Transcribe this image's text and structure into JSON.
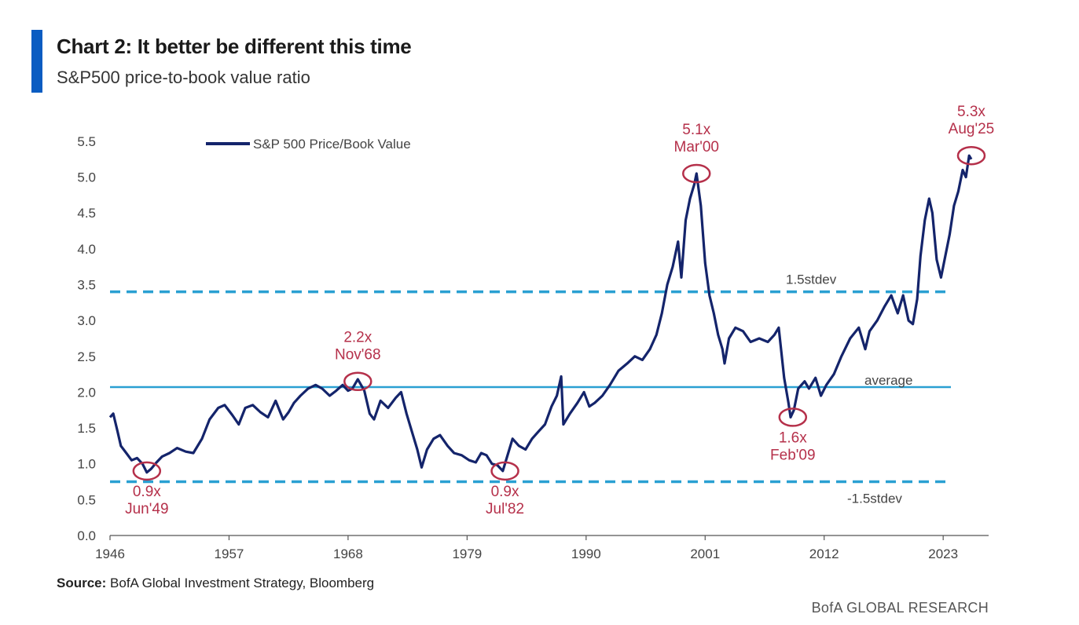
{
  "title": "Chart 2: It better be different this time",
  "subtitle": "S&P500 price-to-book value ratio",
  "source_label": "Source:",
  "source_text": "BofA Global Investment Strategy, Bloomberg",
  "footer": "BofA GLOBAL RESEARCH",
  "colors": {
    "accent": "#0a5cc2",
    "series": "#14246b",
    "bands": "#2aa0d2",
    "annotation": "#b5304a",
    "text": "#444444"
  },
  "chart_data": {
    "type": "line",
    "xlim": [
      1946,
      2027
    ],
    "ylim": [
      0,
      5.5
    ],
    "xticks": [
      "1946",
      "1957",
      "1968",
      "1979",
      "1990",
      "2001",
      "2012",
      "2023"
    ],
    "yticks": [
      "0.0",
      "0.5",
      "1.0",
      "1.5",
      "2.0",
      "2.5",
      "3.0",
      "3.5",
      "4.0",
      "4.5",
      "5.0",
      "5.5"
    ],
    "grid": false,
    "legend_position": "top-left",
    "series": [
      {
        "name": "S&P 500 Price/Book Value",
        "x": [
          1946.0,
          1946.3,
          1946.7,
          1947.0,
          1947.5,
          1948.0,
          1948.5,
          1949.0,
          1949.4,
          1949.8,
          1950.3,
          1950.8,
          1951.5,
          1952.2,
          1953.0,
          1953.7,
          1954.5,
          1955.2,
          1956.0,
          1956.6,
          1957.3,
          1957.9,
          1958.5,
          1959.2,
          1959.9,
          1960.6,
          1961.3,
          1962.0,
          1962.5,
          1963.0,
          1963.6,
          1964.3,
          1965.0,
          1965.6,
          1966.3,
          1966.9,
          1967.5,
          1968.0,
          1968.4,
          1968.9,
          1969.5,
          1970.0,
          1970.4,
          1971.0,
          1971.7,
          1972.4,
          1972.9,
          1973.4,
          1973.9,
          1974.4,
          1974.8,
          1975.3,
          1975.9,
          1976.5,
          1977.2,
          1977.8,
          1978.5,
          1979.2,
          1979.8,
          1980.3,
          1980.8,
          1981.3,
          1981.8,
          1982.3,
          1982.7,
          1983.2,
          1983.8,
          1984.4,
          1985.0,
          1985.6,
          1986.2,
          1986.8,
          1987.3,
          1987.7,
          1987.9,
          1988.5,
          1989.2,
          1989.8,
          1990.3,
          1990.8,
          1991.5,
          1992.2,
          1993.0,
          1993.8,
          1994.5,
          1995.2,
          1995.9,
          1996.5,
          1997.0,
          1997.5,
          1998.0,
          1998.5,
          1998.8,
          1999.2,
          1999.6,
          2000.0,
          2000.2,
          2000.6,
          2001.0,
          2001.4,
          2001.8,
          2002.2,
          2002.6,
          2002.8,
          2003.2,
          2003.8,
          2004.5,
          2005.2,
          2006.0,
          2006.8,
          2007.4,
          2007.8,
          2008.3,
          2008.7,
          2008.9,
          2009.2,
          2009.6,
          2010.2,
          2010.6,
          2011.2,
          2011.7,
          2012.2,
          2012.9,
          2013.6,
          2014.4,
          2015.2,
          2015.8,
          2016.2,
          2016.9,
          2017.6,
          2018.2,
          2018.8,
          2019.3,
          2019.8,
          2020.2,
          2020.6,
          2020.9,
          2021.3,
          2021.7,
          2022.0,
          2022.4,
          2022.8,
          2023.2,
          2023.6,
          2024.0,
          2024.4,
          2024.8,
          2025.1,
          2025.4,
          2025.6
        ],
        "values": [
          1.65,
          1.7,
          1.45,
          1.25,
          1.15,
          1.05,
          1.08,
          1.0,
          0.88,
          0.93,
          1.02,
          1.1,
          1.15,
          1.22,
          1.17,
          1.15,
          1.35,
          1.62,
          1.78,
          1.82,
          1.68,
          1.55,
          1.78,
          1.82,
          1.72,
          1.65,
          1.88,
          1.62,
          1.72,
          1.85,
          1.95,
          2.05,
          2.1,
          2.05,
          1.95,
          2.02,
          2.1,
          2.02,
          2.05,
          2.18,
          2.02,
          1.7,
          1.62,
          1.88,
          1.78,
          1.92,
          2.0,
          1.7,
          1.45,
          1.2,
          0.95,
          1.2,
          1.35,
          1.4,
          1.25,
          1.15,
          1.12,
          1.05,
          1.02,
          1.15,
          1.12,
          1.0,
          0.98,
          0.9,
          1.1,
          1.35,
          1.25,
          1.2,
          1.35,
          1.45,
          1.55,
          1.8,
          1.95,
          2.22,
          1.55,
          1.7,
          1.85,
          2.0,
          1.8,
          1.85,
          1.95,
          2.1,
          2.3,
          2.4,
          2.5,
          2.45,
          2.6,
          2.8,
          3.1,
          3.5,
          3.75,
          4.1,
          3.6,
          4.4,
          4.7,
          4.9,
          5.05,
          4.6,
          3.8,
          3.35,
          3.1,
          2.8,
          2.6,
          2.4,
          2.75,
          2.9,
          2.85,
          2.7,
          2.75,
          2.7,
          2.8,
          2.9,
          2.2,
          1.85,
          1.65,
          1.75,
          2.05,
          2.15,
          2.05,
          2.2,
          1.95,
          2.1,
          2.25,
          2.5,
          2.75,
          2.9,
          2.6,
          2.85,
          3.0,
          3.2,
          3.35,
          3.1,
          3.35,
          3.0,
          2.95,
          3.3,
          3.9,
          4.4,
          4.7,
          4.5,
          3.85,
          3.6,
          3.9,
          4.2,
          4.6,
          4.8,
          5.1,
          5.0,
          5.3,
          5.25
        ]
      }
    ],
    "reference_lines": [
      {
        "name": "1.5stdev",
        "value": 3.4,
        "style": "dashed"
      },
      {
        "name": "average",
        "value": 2.07,
        "style": "solid"
      },
      {
        "name": "-1.5stdev",
        "value": 0.75,
        "style": "dashed"
      }
    ],
    "annotations": [
      {
        "value_label": "0.9x",
        "date_label": "Jun'49",
        "x": 1949.4,
        "y": 0.9,
        "label_side": "below"
      },
      {
        "value_label": "2.2x",
        "date_label": "Nov'68",
        "x": 1968.9,
        "y": 2.15,
        "label_side": "above"
      },
      {
        "value_label": "0.9x",
        "date_label": "Jul'82",
        "x": 1982.5,
        "y": 0.9,
        "label_side": "below"
      },
      {
        "value_label": "5.1x",
        "date_label": "Mar'00",
        "x": 2000.2,
        "y": 5.05,
        "label_side": "above"
      },
      {
        "value_label": "1.6x",
        "date_label": "Feb'09",
        "x": 2009.1,
        "y": 1.65,
        "label_side": "below"
      },
      {
        "value_label": "5.3x",
        "date_label": "Aug'25",
        "x": 2025.6,
        "y": 5.3,
        "label_side": "above"
      }
    ]
  }
}
